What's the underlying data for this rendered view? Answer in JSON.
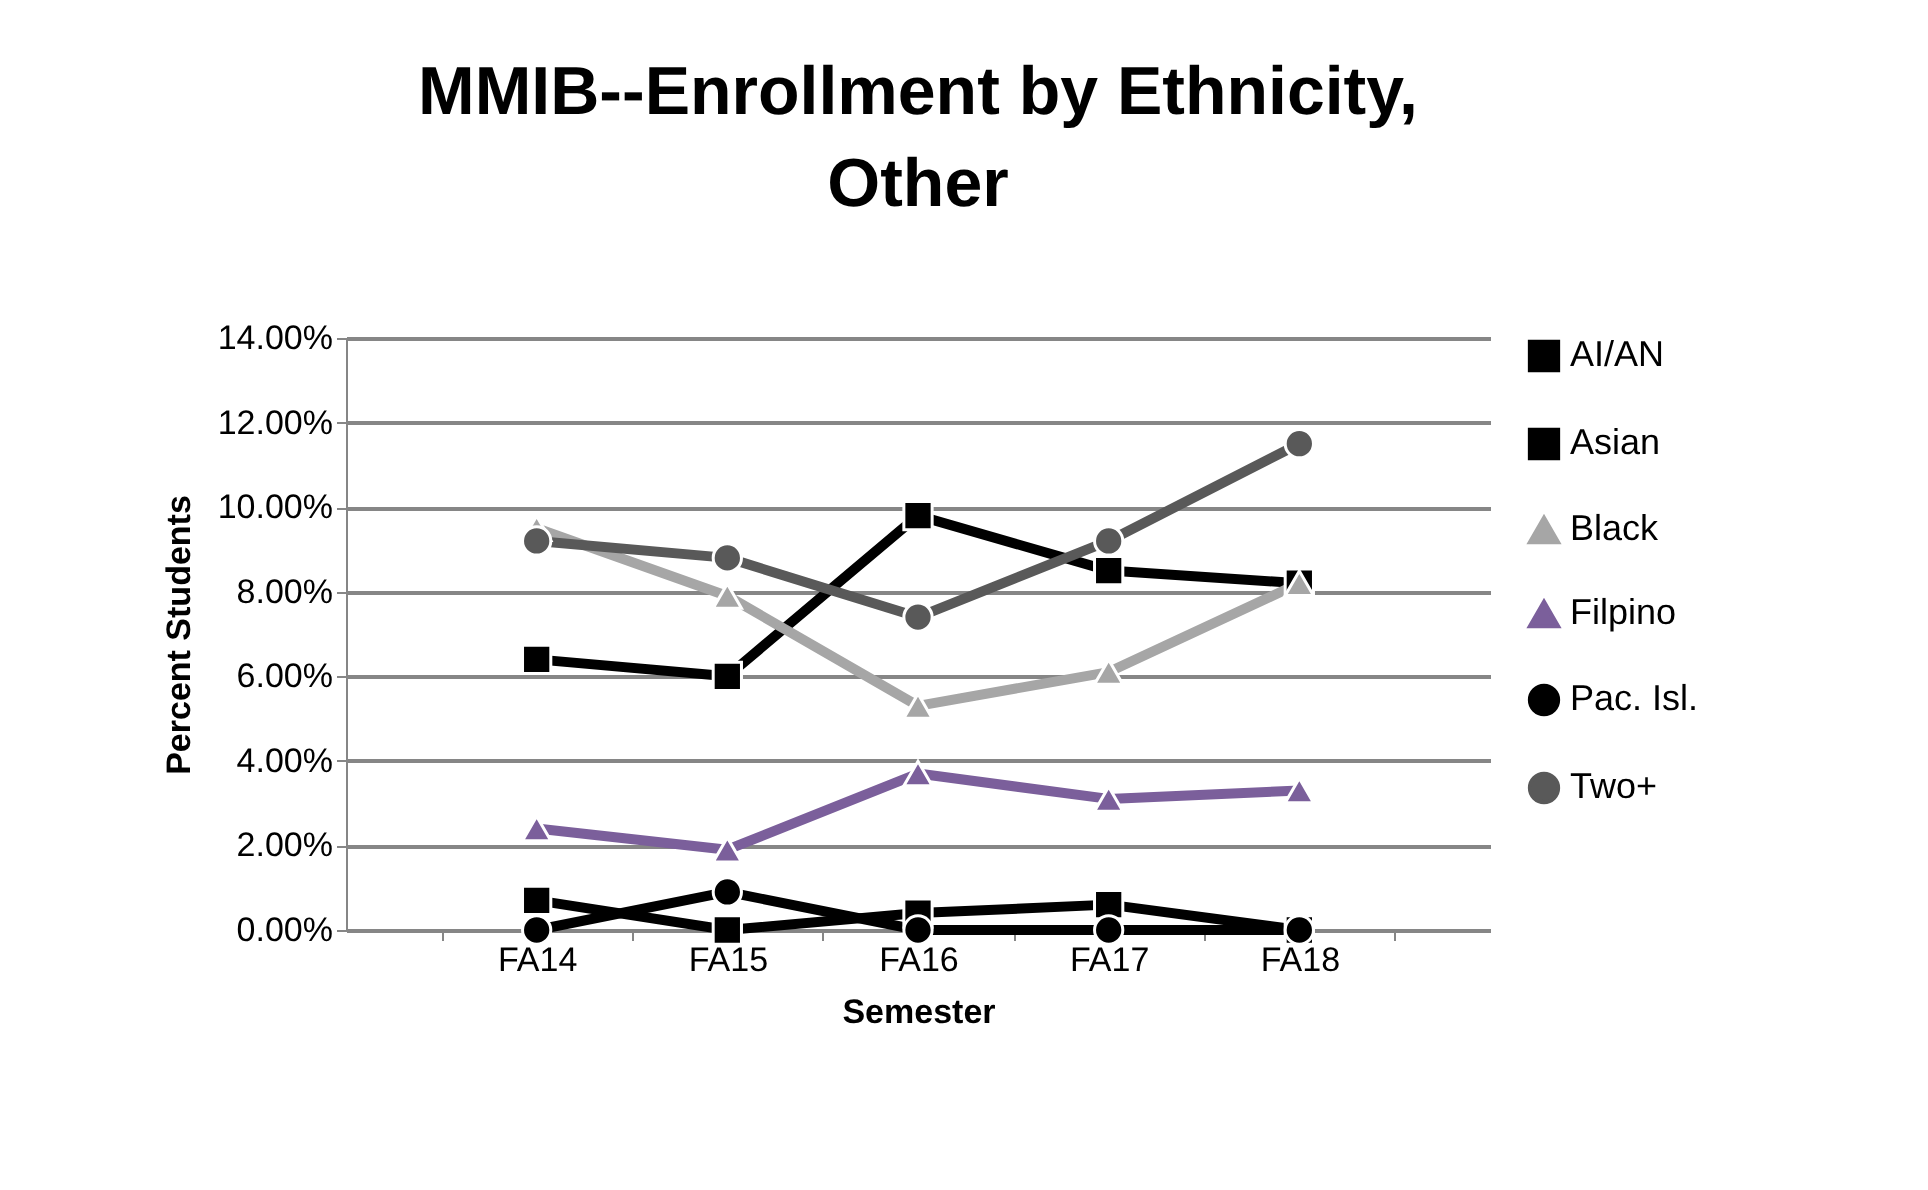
{
  "chart_data": {
    "type": "line",
    "title": "MMIB--Enrollment by Ethnicity, Other",
    "xlabel": "Semester",
    "ylabel": "Percent Students",
    "categories": [
      "FA14",
      "FA15",
      "FA16",
      "FA17",
      "FA18"
    ],
    "series": [
      {
        "name": "AI/AN",
        "color": "#000000",
        "marker": "square",
        "values": [
          0.7,
          0,
          0.4,
          0.6,
          0
        ]
      },
      {
        "name": "Asian",
        "color": "#000000",
        "marker": "square",
        "values": [
          6.4,
          6.0,
          9.8,
          8.5,
          8.2
        ]
      },
      {
        "name": "Black",
        "color": "#a6a6a6",
        "marker": "triangle",
        "values": [
          9.5,
          7.9,
          5.3,
          6.1,
          8.2
        ]
      },
      {
        "name": "Filpino",
        "color": "#7b5f9b",
        "marker": "triangle",
        "values": [
          2.4,
          1.9,
          3.7,
          3.1,
          3.3
        ]
      },
      {
        "name": "Pac. Isl.",
        "color": "#000000",
        "marker": "circle",
        "values": [
          0,
          0.9,
          0,
          0,
          0
        ]
      },
      {
        "name": "Two+",
        "color": "#595959",
        "marker": "circle",
        "values": [
          9.2,
          8.8,
          7.4,
          9.2,
          11.5
        ]
      }
    ],
    "ylim": [
      0,
      14
    ],
    "yticks": [
      {
        "value": 0,
        "label": "0.00%"
      },
      {
        "value": 2,
        "label": "2.00%"
      },
      {
        "value": 4,
        "label": "4.00%"
      },
      {
        "value": 6,
        "label": "6.00%"
      },
      {
        "value": 8,
        "label": "8.00%"
      },
      {
        "value": 10,
        "label": "10.00%"
      },
      {
        "value": 12,
        "label": "12.00%"
      },
      {
        "value": 14,
        "label": "14.00%"
      }
    ],
    "grid": "y",
    "legend": "right",
    "line_style": "solid"
  }
}
